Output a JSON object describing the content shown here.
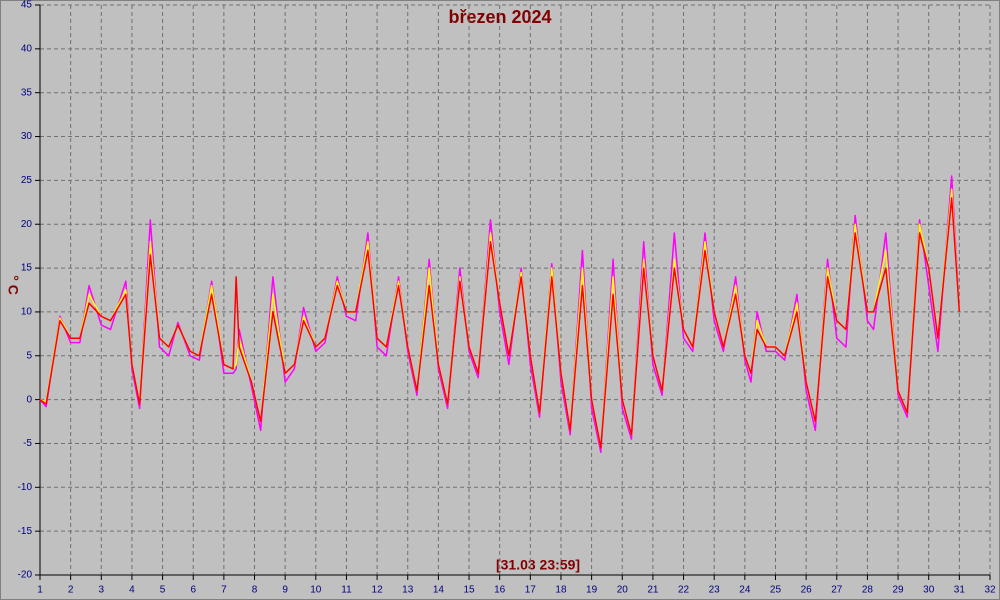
{
  "chart_data": {
    "type": "line",
    "title": "březen 2024",
    "ylabel": "° C",
    "annotation": "[31.03 23:59]",
    "xlim": [
      1,
      32
    ],
    "xticks": [
      1,
      2,
      3,
      4,
      5,
      6,
      7,
      8,
      9,
      10,
      11,
      12,
      13,
      14,
      15,
      16,
      17,
      18,
      19,
      20,
      21,
      22,
      23,
      24,
      25,
      26,
      27,
      28,
      29,
      30,
      31,
      32
    ],
    "ylim": [
      -20,
      45
    ],
    "yticks": [
      -20,
      -15,
      -10,
      -5,
      0,
      5,
      10,
      15,
      20,
      25,
      30,
      35,
      40,
      45
    ],
    "grid": true,
    "x": [
      1.0,
      1.2,
      1.65,
      2.0,
      2.3,
      2.6,
      3.0,
      3.3,
      3.8,
      4.0,
      4.25,
      4.6,
      4.9,
      5.2,
      5.5,
      5.9,
      6.2,
      6.6,
      7.0,
      7.3,
      7.4,
      7.5,
      7.9,
      8.2,
      8.6,
      9.0,
      9.3,
      9.6,
      10.0,
      10.3,
      10.7,
      11.0,
      11.3,
      11.7,
      12.0,
      12.3,
      12.7,
      13.0,
      13.3,
      13.7,
      14.0,
      14.3,
      14.7,
      15.0,
      15.3,
      15.7,
      16.0,
      16.3,
      16.7,
      17.0,
      17.3,
      17.7,
      18.0,
      18.3,
      18.7,
      19.0,
      19.3,
      19.7,
      20.0,
      20.3,
      20.7,
      21.0,
      21.3,
      21.7,
      22.0,
      22.3,
      22.7,
      23.0,
      23.3,
      23.7,
      24.0,
      24.2,
      24.4,
      24.7,
      25.0,
      25.3,
      25.7,
      26.0,
      26.3,
      26.7,
      27.0,
      27.3,
      27.6,
      28.0,
      28.2,
      28.6,
      29.0,
      29.3,
      29.7,
      30.0,
      30.3,
      30.75,
      31.0
    ],
    "series": [
      {
        "color": "#ff00ff",
        "values": [
          0,
          -0.8,
          9.5,
          6.5,
          6.5,
          13,
          8.5,
          8,
          13.5,
          3.5,
          -1,
          20.5,
          6,
          5,
          8.8,
          5,
          4.5,
          13.5,
          3,
          3,
          3.5,
          8,
          1.5,
          -3.5,
          14,
          2,
          3.5,
          10.5,
          5.5,
          6.5,
          14,
          9.5,
          9,
          19,
          6,
          5,
          14,
          5.5,
          0.5,
          16,
          3.5,
          -1,
          15,
          5.5,
          2.5,
          20.5,
          10,
          4,
          15,
          4,
          -2,
          15.5,
          2,
          -4,
          17,
          -1,
          -6,
          16,
          -1,
          -4.5,
          18,
          4,
          0.5,
          19,
          7,
          5.5,
          19,
          9,
          5.5,
          14,
          4.5,
          2,
          10,
          5.5,
          5.5,
          4.5,
          12,
          1,
          -3.5,
          16,
          7,
          6,
          21,
          9,
          8,
          19,
          0.5,
          -2,
          20.5,
          13,
          5.5,
          25.5,
          10
        ]
      },
      {
        "color": "#ffff00",
        "values": [
          0,
          -0.3,
          9.3,
          7,
          7,
          12,
          9.5,
          9,
          12.5,
          4,
          -0.3,
          18,
          7,
          6,
          8.5,
          5.5,
          5,
          13,
          4,
          3.5,
          4,
          7,
          2,
          -2.5,
          12,
          3,
          4,
          9.5,
          6,
          7,
          13.5,
          10,
          10,
          18,
          7,
          6,
          13.5,
          6,
          1,
          15,
          4,
          -0.5,
          14,
          6,
          3,
          19,
          11,
          5,
          14.5,
          5,
          -1.5,
          15,
          3,
          -3.5,
          15,
          0,
          -5.5,
          14,
          0,
          -4,
          16,
          5,
          1,
          16,
          8,
          6,
          18,
          10,
          6,
          13,
          5,
          3,
          9,
          6,
          6,
          5,
          11,
          2,
          -2.5,
          15,
          9,
          8,
          20,
          10,
          10,
          17,
          1,
          -1.5,
          20,
          15,
          7,
          24,
          10
        ]
      },
      {
        "color": "#ff0000",
        "values": [
          0,
          -0.5,
          9,
          7,
          7,
          11,
          9.5,
          9,
          12,
          4,
          -0.5,
          16.5,
          7,
          6,
          8.5,
          5.5,
          5,
          12,
          4,
          3.5,
          14,
          6,
          2,
          -2.5,
          10,
          3,
          4,
          9,
          6,
          7,
          13,
          10,
          10,
          17,
          7,
          6,
          13,
          6,
          1,
          13,
          4,
          -0.5,
          13.5,
          6,
          3,
          18,
          11,
          5,
          14,
          5,
          -1.5,
          14,
          3,
          -3.5,
          13,
          0,
          -5.5,
          12,
          0,
          -4,
          15,
          5,
          1,
          15,
          8,
          6,
          17,
          10,
          6,
          12,
          5,
          3,
          8,
          6,
          6,
          5,
          10,
          2,
          -2.5,
          14,
          9,
          8,
          19,
          10,
          10,
          15,
          1,
          -1.5,
          19,
          15,
          7,
          23,
          10
        ]
      }
    ]
  }
}
